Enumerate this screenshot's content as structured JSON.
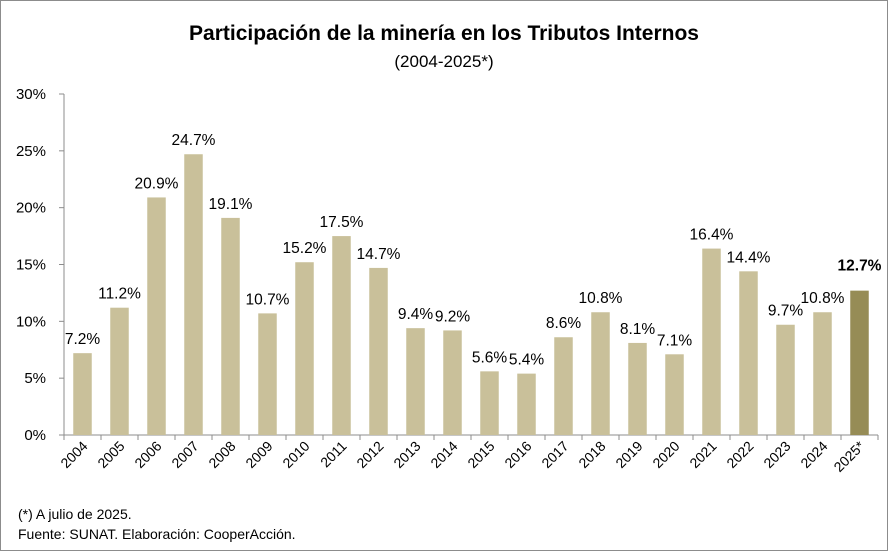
{
  "chart_data": {
    "type": "bar",
    "title": "Participación de la minería en los Tributos Internos",
    "subtitle": "(2004-2025*)",
    "categories": [
      "2004",
      "2005",
      "2006",
      "2007",
      "2008",
      "2009",
      "2010",
      "2011",
      "2012",
      "2013",
      "2014",
      "2015",
      "2016",
      "2017",
      "2018",
      "2019",
      "2020",
      "2021",
      "2022",
      "2023",
      "2024",
      "2025*"
    ],
    "values": [
      7.2,
      11.2,
      20.9,
      24.7,
      19.1,
      10.7,
      15.2,
      17.5,
      14.7,
      9.4,
      9.2,
      5.6,
      5.4,
      8.6,
      10.8,
      8.1,
      7.1,
      16.4,
      14.4,
      9.7,
      10.8,
      12.7
    ],
    "data_labels": [
      "7.2%",
      "11.2%",
      "20.9%",
      "24.7%",
      "19.1%",
      "10.7%",
      "15.2%",
      "17.5%",
      "14.7%",
      "9.4%",
      "9.2%",
      "5.6%",
      "5.4%",
      "8.6%",
      "10.8%",
      "8.1%",
      "7.1%",
      "16.4%",
      "14.4%",
      "9.7%",
      "10.8%",
      "12.7%"
    ],
    "ylim": [
      0,
      30
    ],
    "yticks": [
      0,
      5,
      10,
      15,
      20,
      25,
      30
    ],
    "ytick_labels": [
      "0%",
      "5%",
      "10%",
      "15%",
      "20%",
      "25%",
      "30%"
    ],
    "xlabel": "",
    "ylabel": "",
    "grid": false,
    "legend": "none",
    "colors": {
      "bar": "#c9c09a",
      "highlight_bar": "#968c56",
      "axis": "#8c8c8c"
    },
    "highlight_index": 21
  },
  "footnotes": {
    "note": "(*) A julio de 2025.",
    "source": "Fuente: SUNAT. Elaboración: CooperAcción."
  }
}
